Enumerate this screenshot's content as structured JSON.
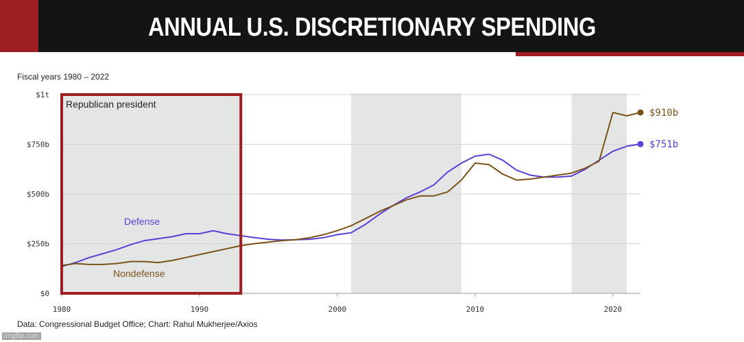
{
  "header": {
    "title": "ANNUAL U.S. DISCRETIONARY SPENDING"
  },
  "subtitle": "Fiscal years 1980 – 2022",
  "source": "Data: Congressional Budget Office; Chart: Rahul Mukherjee/Axios",
  "watermark": "imgflip.com",
  "annotation": "Republican president",
  "colors": {
    "defense": "#5b3fd6",
    "nondefense": "#7a5318",
    "shade": "#e4e6e6",
    "highlight": "#9c1d22"
  },
  "chart_data": {
    "type": "line",
    "title": "ANNUAL U.S. DISCRETIONARY SPENDING",
    "subtitle": "Fiscal years 1980 – 2022",
    "xlim": [
      1980,
      2022
    ],
    "ylim": [
      0,
      1000
    ],
    "y_ticks": [
      {
        "value": 0,
        "label": "$0"
      },
      {
        "value": 250,
        "label": "$250b"
      },
      {
        "value": 500,
        "label": "$500b"
      },
      {
        "value": 750,
        "label": "$750b"
      },
      {
        "value": 1000,
        "label": "$1t"
      }
    ],
    "x_ticks": [
      1980,
      1990,
      2000,
      2010,
      2020
    ],
    "shaded_periods": [
      [
        1980,
        1993
      ],
      [
        2001,
        2009
      ],
      [
        2017,
        2021
      ]
    ],
    "highlight_box": {
      "label": "Republican president",
      "from": 1980,
      "to": 1993
    },
    "x": [
      1980,
      1981,
      1982,
      1983,
      1984,
      1985,
      1986,
      1987,
      1988,
      1989,
      1990,
      1991,
      1992,
      1993,
      1994,
      1995,
      1996,
      1997,
      1998,
      1999,
      2000,
      2001,
      2002,
      2003,
      2004,
      2005,
      2006,
      2007,
      2008,
      2009,
      2010,
      2011,
      2012,
      2013,
      2014,
      2015,
      2016,
      2017,
      2018,
      2019,
      2020,
      2021,
      2022
    ],
    "series": [
      {
        "name": "Defense",
        "end_label": "$751b",
        "values": [
          135,
          155,
          180,
          200,
          220,
          245,
          265,
          275,
          285,
          300,
          300,
          315,
          300,
          290,
          280,
          272,
          268,
          270,
          272,
          280,
          295,
          305,
          345,
          395,
          440,
          480,
          510,
          545,
          610,
          655,
          690,
          700,
          670,
          620,
          595,
          585,
          585,
          590,
          625,
          670,
          715,
          740,
          751
        ]
      },
      {
        "name": "Nondefense",
        "end_label": "$910b",
        "values": [
          140,
          150,
          145,
          145,
          150,
          160,
          160,
          155,
          165,
          180,
          195,
          210,
          225,
          240,
          250,
          258,
          265,
          270,
          280,
          295,
          315,
          340,
          375,
          410,
          440,
          470,
          490,
          490,
          510,
          570,
          655,
          648,
          600,
          570,
          575,
          585,
          595,
          605,
          630,
          665,
          910,
          893,
          910
        ]
      }
    ]
  }
}
